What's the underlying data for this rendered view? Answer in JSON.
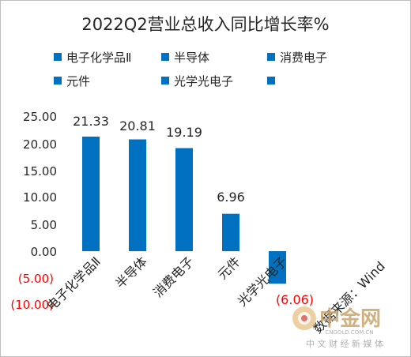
{
  "chart_data": {
    "type": "bar",
    "title": "2022Q2营业总收入同比增长率%",
    "categories": [
      "电子化学品Ⅱ",
      "半导体",
      "消费电子",
      "元件",
      "光学光电子",
      "数据来源：Wind"
    ],
    "series": [
      {
        "values": [
          21.33,
          20.81,
          19.19,
          6.96,
          -6.06,
          null
        ]
      }
    ],
    "data_labels": [
      "21.33",
      "20.81",
      "19.19",
      "6.96",
      "(6.06)",
      ""
    ],
    "legend": {
      "placement": "top",
      "entries": [
        "电子化学品Ⅱ",
        "半导体",
        "消费电子",
        "元件",
        "光学光电子",
        ""
      ]
    },
    "y_ticks": [
      {
        "value": 25,
        "label": "25.00"
      },
      {
        "value": 20,
        "label": "20.00"
      },
      {
        "value": 15,
        "label": "15.00"
      },
      {
        "value": 10,
        "label": "10.00"
      },
      {
        "value": 5,
        "label": "5.00"
      },
      {
        "value": 0,
        "label": "0.00"
      },
      {
        "value": -5,
        "label": "(5.00)"
      },
      {
        "value": -10,
        "label": "(10.00)"
      }
    ],
    "ylim": [
      -10,
      25
    ],
    "grid": false,
    "colors": {
      "bar": "#0070c0",
      "negative_text": "#ff0000",
      "text": "#262626"
    }
  },
  "watermark": {
    "brand": "中金网",
    "domain": "CNGOLD.COM.CN",
    "slogan": "中 文 财 经 新 媒 体"
  }
}
